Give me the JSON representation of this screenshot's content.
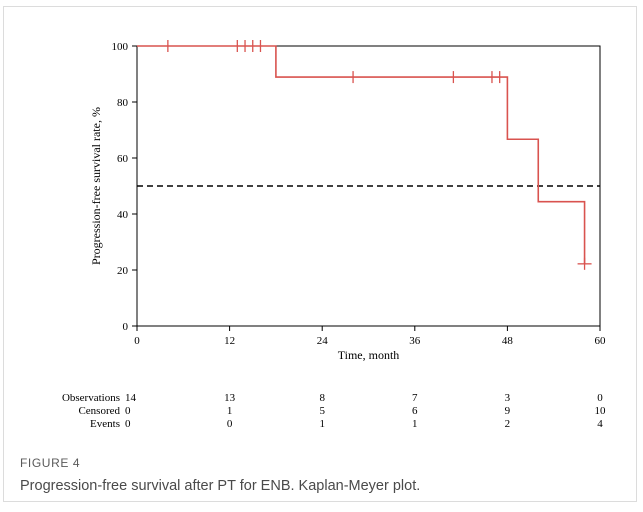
{
  "figure": {
    "label": "FIGURE 4",
    "caption": "Progression-free survival after PT for ENB. Kaplan-Meyer plot."
  },
  "chart_data": {
    "type": "line",
    "xlabel": "Time, month",
    "ylabel": "Progression-free survival rate, %",
    "xlim": [
      0,
      60
    ],
    "ylim": [
      0,
      100
    ],
    "xticks": [
      0,
      12,
      24,
      36,
      48,
      60
    ],
    "yticks": [
      0,
      20,
      40,
      60,
      80,
      100
    ],
    "grid": false,
    "line_color": "#d9534f",
    "reference_line": {
      "y": 50,
      "style": "dashed",
      "color": "#000000"
    },
    "series": [
      {
        "steps": [
          {
            "x": 0,
            "y": 100
          },
          {
            "x": 18,
            "y": 88.9
          },
          {
            "x": 48,
            "y": 66.7
          },
          {
            "x": 52,
            "y": 44.4
          },
          {
            "x": 58,
            "y": 22.2
          }
        ],
        "censored": [
          {
            "x": 4,
            "y": 100
          },
          {
            "x": 13,
            "y": 100
          },
          {
            "x": 14,
            "y": 100
          },
          {
            "x": 15,
            "y": 100
          },
          {
            "x": 16,
            "y": 100
          },
          {
            "x": 28,
            "y": 88.9
          },
          {
            "x": 41,
            "y": 88.9
          },
          {
            "x": 46,
            "y": 88.9
          },
          {
            "x": 47,
            "y": 88.9
          },
          {
            "x": 58,
            "y": 22.2
          }
        ]
      }
    ],
    "risk_table": {
      "times": [
        0,
        12,
        24,
        36,
        48,
        60
      ],
      "rows": [
        {
          "label": "Observations",
          "values": [
            "14",
            "13",
            "8",
            "7",
            "3",
            "0"
          ]
        },
        {
          "label": "Censored",
          "values": [
            "0",
            "1",
            "5",
            "6",
            "9",
            "10"
          ]
        },
        {
          "label": "Events",
          "values": [
            "0",
            "0",
            "1",
            "1",
            "2",
            "4"
          ]
        }
      ]
    }
  }
}
